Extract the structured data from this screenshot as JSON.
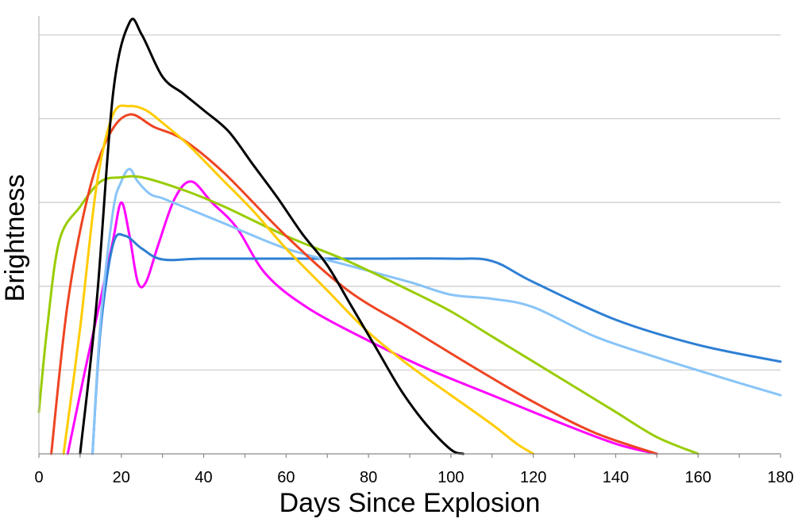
{
  "chart_data": {
    "type": "line",
    "title": "",
    "xlabel": "Days Since Explosion",
    "ylabel": "Brightness",
    "xlim": [
      0,
      180
    ],
    "ylim": [
      0,
      5.15
    ],
    "x_ticks": [
      0,
      20,
      40,
      60,
      80,
      100,
      120,
      140,
      160,
      180
    ],
    "y_gridlines": [
      1,
      2,
      3,
      4,
      5
    ],
    "grid": "horizontal",
    "legend": "none",
    "series": [
      {
        "color": "#000000",
        "x": [
          10,
          14,
          18,
          22,
          25,
          30,
          35,
          40,
          46,
          52,
          58,
          64,
          70,
          76,
          82,
          88,
          94,
          100,
          103
        ],
        "y": [
          0,
          1.8,
          4.3,
          5.15,
          5.0,
          4.5,
          4.3,
          4.1,
          3.85,
          3.45,
          3.05,
          2.62,
          2.25,
          1.75,
          1.25,
          0.75,
          0.35,
          0.05,
          0
        ]
      },
      {
        "color": "#FFCC00",
        "x": [
          6,
          10,
          14,
          18,
          22,
          26,
          30,
          36,
          44,
          52,
          60,
          70,
          80,
          90,
          100,
          110,
          116,
          120
        ],
        "y": [
          0,
          1.5,
          3.2,
          4.05,
          4.15,
          4.1,
          3.95,
          3.7,
          3.3,
          2.9,
          2.45,
          1.95,
          1.45,
          1.05,
          0.7,
          0.35,
          0.12,
          0
        ]
      },
      {
        "color": "#EE4422",
        "x": [
          3,
          7,
          12,
          17,
          22,
          28,
          35,
          45,
          60,
          75,
          90,
          105,
          120,
          135,
          150
        ],
        "y": [
          0,
          1.8,
          3.1,
          3.8,
          4.05,
          3.9,
          3.75,
          3.35,
          2.6,
          1.95,
          1.5,
          1.05,
          0.62,
          0.25,
          0
        ]
      },
      {
        "color": "#99CC00",
        "x": [
          0,
          2,
          5,
          10,
          15,
          20,
          25,
          35,
          45,
          60,
          75,
          90,
          100,
          110,
          120,
          130,
          140,
          150,
          160
        ],
        "y": [
          0.5,
          1.5,
          2.55,
          2.95,
          3.25,
          3.3,
          3.3,
          3.15,
          2.95,
          2.6,
          2.3,
          1.95,
          1.7,
          1.4,
          1.1,
          0.8,
          0.5,
          0.2,
          0
        ]
      },
      {
        "color": "#88C4F8",
        "x": [
          13,
          15,
          18,
          20,
          22,
          24,
          27,
          30,
          35,
          45,
          60,
          75,
          90,
          100,
          110,
          120,
          135,
          150,
          165,
          180
        ],
        "y": [
          0,
          1.6,
          2.9,
          3.25,
          3.4,
          3.25,
          3.1,
          3.05,
          2.95,
          2.75,
          2.45,
          2.25,
          2.05,
          1.9,
          1.85,
          1.75,
          1.4,
          1.15,
          0.92,
          0.7
        ]
      },
      {
        "color": "#2E7FD4",
        "x": [
          13,
          15,
          18,
          21,
          25,
          30,
          40,
          60,
          80,
          100,
          110,
          120,
          140,
          160,
          180
        ],
        "y": [
          0,
          1.5,
          2.5,
          2.6,
          2.45,
          2.32,
          2.33,
          2.33,
          2.33,
          2.33,
          2.3,
          2.05,
          1.6,
          1.3,
          1.1
        ]
      },
      {
        "color": "#FF00FF",
        "x": [
          7,
          11,
          15,
          18,
          20,
          22,
          24,
          26,
          29,
          33,
          37,
          42,
          48,
          55,
          65,
          80,
          95,
          110,
          125,
          140,
          150
        ],
        "y": [
          0,
          0.95,
          1.85,
          2.55,
          3.0,
          2.6,
          2.05,
          2.05,
          2.5,
          3.05,
          3.25,
          3.0,
          2.7,
          2.15,
          1.75,
          1.35,
          1.0,
          0.7,
          0.4,
          0.12,
          0
        ]
      }
    ]
  }
}
